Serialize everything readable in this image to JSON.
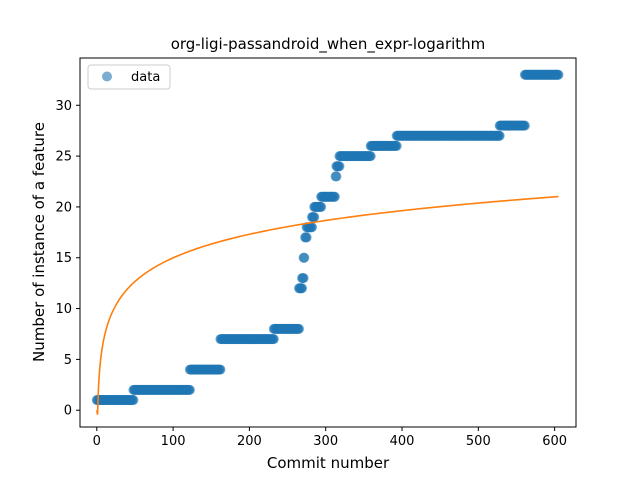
{
  "chart_data": {
    "type": "scatter",
    "title": "org-ligi-passandroid_when_expr-logarithm",
    "xlabel": "Commit number",
    "ylabel": "Number of instance of a feature",
    "xlim": [
      -22,
      628
    ],
    "ylim": [
      -1.65,
      34.65
    ],
    "xticks": [
      0,
      100,
      200,
      300,
      400,
      500,
      600
    ],
    "yticks": [
      0,
      5,
      10,
      15,
      20,
      25,
      30
    ],
    "grid": false,
    "legend": {
      "position": "upper-left",
      "entries": [
        "data"
      ]
    },
    "colors": {
      "data": "#1f77b4",
      "fit": "#ff7f0e"
    },
    "series": [
      {
        "name": "data",
        "kind": "scatter",
        "segments": [
          {
            "x_start": 0,
            "x_end": 48,
            "y": 1
          },
          {
            "x_start": 48,
            "x_end": 122,
            "y": 2
          },
          {
            "x_start": 122,
            "x_end": 162,
            "y": 4
          },
          {
            "x_start": 162,
            "x_end": 232,
            "y": 7
          },
          {
            "x_start": 232,
            "x_end": 265,
            "y": 8
          },
          {
            "x_start": 265,
            "x_end": 269,
            "y": 12
          },
          {
            "x_start": 269,
            "x_end": 271,
            "y": 13
          },
          {
            "x_start": 271,
            "x_end": 272,
            "y": 15
          },
          {
            "x_start": 273,
            "x_end": 275,
            "y": 17
          },
          {
            "x_start": 275,
            "x_end": 282,
            "y": 18
          },
          {
            "x_start": 282,
            "x_end": 285,
            "y": 19
          },
          {
            "x_start": 285,
            "x_end": 294,
            "y": 20
          },
          {
            "x_start": 294,
            "x_end": 312,
            "y": 21
          },
          {
            "x_start": 313,
            "x_end": 314,
            "y": 23
          },
          {
            "x_start": 314,
            "x_end": 318,
            "y": 24
          },
          {
            "x_start": 318,
            "x_end": 359,
            "y": 25
          },
          {
            "x_start": 359,
            "x_end": 393,
            "y": 26
          },
          {
            "x_start": 393,
            "x_end": 528,
            "y": 27
          },
          {
            "x_start": 528,
            "x_end": 561,
            "y": 28
          },
          {
            "x_start": 561,
            "x_end": 605,
            "y": 33
          }
        ]
      },
      {
        "name": "",
        "kind": "line",
        "x_range": [
          0,
          605
        ],
        "model": "y = a + b * ln(x)",
        "a": -0.44,
        "b": 3.35
      }
    ]
  }
}
